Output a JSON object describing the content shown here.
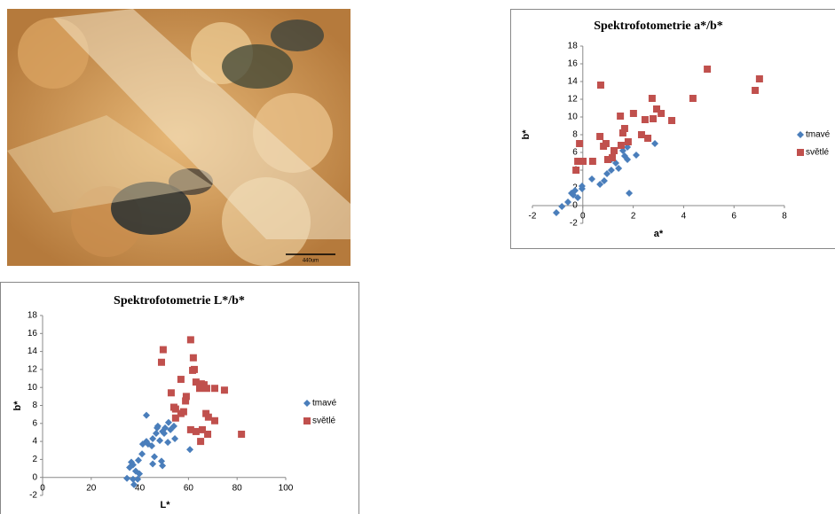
{
  "photo": {
    "scale_label": "440um"
  },
  "chart_data": [
    {
      "type": "scatter",
      "title": "Spektrofotometrie a*/b*",
      "x_label": "a*",
      "y_label": "b*",
      "xlim": [
        -2,
        8
      ],
      "xticks": [
        -2,
        0,
        2,
        4,
        6,
        8
      ],
      "ylim": [
        -2,
        18
      ],
      "yticks": [
        -2,
        0,
        2,
        4,
        6,
        8,
        10,
        12,
        14,
        16,
        18
      ],
      "grid": false,
      "legend": "right",
      "series": [
        {
          "name": "tmavé",
          "color": "#4a7ebb",
          "marker": "diamond",
          "x": [
            2.86,
            2.12,
            1.77,
            1.59,
            1.66,
            1.77,
            1.31,
            1.13,
            1.42,
            0.96,
            0.85,
            0.68,
            0.36,
            -0.03,
            -0.31,
            -0.38,
            -0.2,
            -0.45,
            -0.59,
            -0.83,
            -1.05,
            1.84,
            -0.03,
            1.13
          ],
          "values": [
            7.0,
            5.7,
            6.6,
            6.2,
            5.6,
            5.2,
            4.8,
            4.0,
            4.2,
            3.6,
            2.8,
            2.4,
            3.0,
            1.9,
            1.7,
            1.2,
            0.9,
            1.4,
            0.4,
            -0.1,
            -0.8,
            1.4,
            2.2,
            5.2
          ]
        },
        {
          "name": "světlé",
          "color": "#c0504d",
          "marker": "square",
          "x": [
            0.71,
            4.94,
            4.37,
            6.84,
            7.01,
            1.49,
            2.01,
            2.75,
            2.93,
            2.79,
            3.11,
            3.53,
            2.47,
            2.33,
            2.58,
            1.66,
            1.59,
            1.8,
            1.52,
            1.24,
            1.17,
            0.99,
            0.82,
            0.92,
            -0.13,
            -0.2,
            0.01,
            -0.27,
            0.68,
            0.39
          ],
          "values": [
            13.6,
            15.4,
            12.1,
            13.0,
            14.3,
            10.1,
            10.4,
            12.1,
            10.9,
            9.8,
            10.4,
            9.6,
            9.7,
            8.0,
            7.6,
            8.7,
            8.2,
            7.2,
            6.8,
            6.2,
            5.4,
            5.2,
            6.7,
            7.0,
            7.0,
            5.0,
            5.0,
            4.0,
            7.8,
            5.0
          ]
        }
      ]
    },
    {
      "type": "scatter",
      "title": "Spektrofotometrie L*/b*",
      "x_label": "L*",
      "y_label": "b*",
      "xlim": [
        0,
        100
      ],
      "xticks": [
        0,
        20,
        40,
        60,
        80,
        100
      ],
      "ylim": [
        -2,
        18
      ],
      "yticks": [
        -2,
        0,
        2,
        4,
        6,
        8,
        10,
        12,
        14,
        16,
        18
      ],
      "grid": false,
      "legend": "right",
      "series": [
        {
          "name": "tmavé",
          "color": "#4a7ebb",
          "marker": "diamond",
          "x": [
            42.7,
            51.8,
            50.4,
            54.0,
            47.4,
            49.3,
            47.1,
            46.7,
            50.0,
            45.3,
            52.6,
            54.4,
            42.7,
            44.9,
            48.2,
            51.5,
            41.2,
            43.4,
            46.0,
            40.9,
            48.9,
            60.6,
            45.3,
            49.3,
            39.4,
            37.2,
            38.3,
            39.8,
            39.1,
            37.2,
            34.7,
            37.6,
            35.8,
            36.5
          ],
          "values": [
            6.9,
            6.1,
            5.5,
            5.7,
            5.7,
            5.1,
            5.5,
            4.9,
            4.9,
            4.3,
            5.3,
            4.3,
            4.0,
            3.5,
            4.1,
            3.9,
            3.7,
            3.7,
            2.3,
            2.6,
            1.8,
            3.1,
            1.5,
            1.3,
            1.9,
            1.4,
            0.7,
            0.4,
            -0.2,
            -0.2,
            -0.1,
            -0.8,
            1.1,
            1.7
          ]
        },
        {
          "name": "světlé",
          "color": "#c0504d",
          "marker": "square",
          "x": [
            60.9,
            49.6,
            48.9,
            62.0,
            62.4,
            61.7,
            63.1,
            65.3,
            64.6,
            66.4,
            67.5,
            70.8,
            74.8,
            56.9,
            52.9,
            59.1,
            58.8,
            54.0,
            54.7,
            56.9,
            58.0,
            67.2,
            68.2,
            54.7,
            65.7,
            70.8,
            60.9,
            63.1,
            65.0,
            67.9,
            81.8
          ],
          "values": [
            15.3,
            14.2,
            12.8,
            13.3,
            12.0,
            11.9,
            10.6,
            10.4,
            9.9,
            10.3,
            9.9,
            9.9,
            9.7,
            10.9,
            9.4,
            9.0,
            8.5,
            7.8,
            7.6,
            7.1,
            7.3,
            7.1,
            6.7,
            6.6,
            5.3,
            6.3,
            5.3,
            5.1,
            4.0,
            4.8,
            4.8
          ]
        }
      ]
    }
  ]
}
